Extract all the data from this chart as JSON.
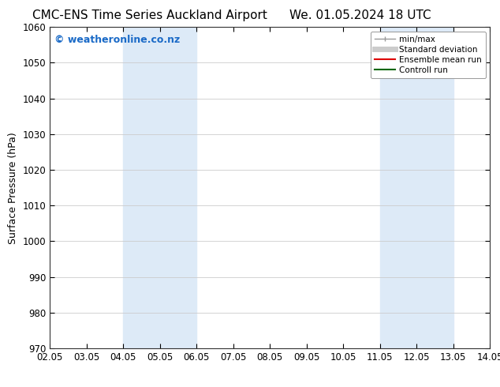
{
  "title_left": "CMC-ENS Time Series Auckland Airport",
  "title_right": "We. 01.05.2024 18 UTC",
  "ylabel": "Surface Pressure (hPa)",
  "xlabel": "",
  "ylim": [
    970,
    1060
  ],
  "yticks": [
    970,
    980,
    990,
    1000,
    1010,
    1020,
    1030,
    1040,
    1050,
    1060
  ],
  "xtick_labels": [
    "02.05",
    "03.05",
    "04.05",
    "05.05",
    "06.05",
    "07.05",
    "08.05",
    "09.05",
    "10.05",
    "11.05",
    "12.05",
    "13.05",
    "14.05"
  ],
  "xtick_positions": [
    0,
    1,
    2,
    3,
    4,
    5,
    6,
    7,
    8,
    9,
    10,
    11,
    12
  ],
  "shaded_regions": [
    {
      "x_start": 2,
      "x_end": 4,
      "color": "#ddeaf7"
    },
    {
      "x_start": 9,
      "x_end": 11,
      "color": "#ddeaf7"
    }
  ],
  "watermark_text": "© weatheronline.co.nz",
  "watermark_color": "#1a6ac7",
  "watermark_fontsize": 9,
  "legend_entries": [
    {
      "label": "min/max",
      "color": "#999999",
      "lw": 1
    },
    {
      "label": "Standard deviation",
      "color": "#cccccc",
      "lw": 5
    },
    {
      "label": "Ensemble mean run",
      "color": "#dd0000",
      "lw": 1.5
    },
    {
      "label": "Controll run",
      "color": "#006600",
      "lw": 1.5
    }
  ],
  "bg_color": "#ffffff",
  "plot_bg_color": "#ffffff",
  "grid_color": "#cccccc",
  "title_fontsize": 11,
  "tick_fontsize": 8.5,
  "ylabel_fontsize": 9
}
